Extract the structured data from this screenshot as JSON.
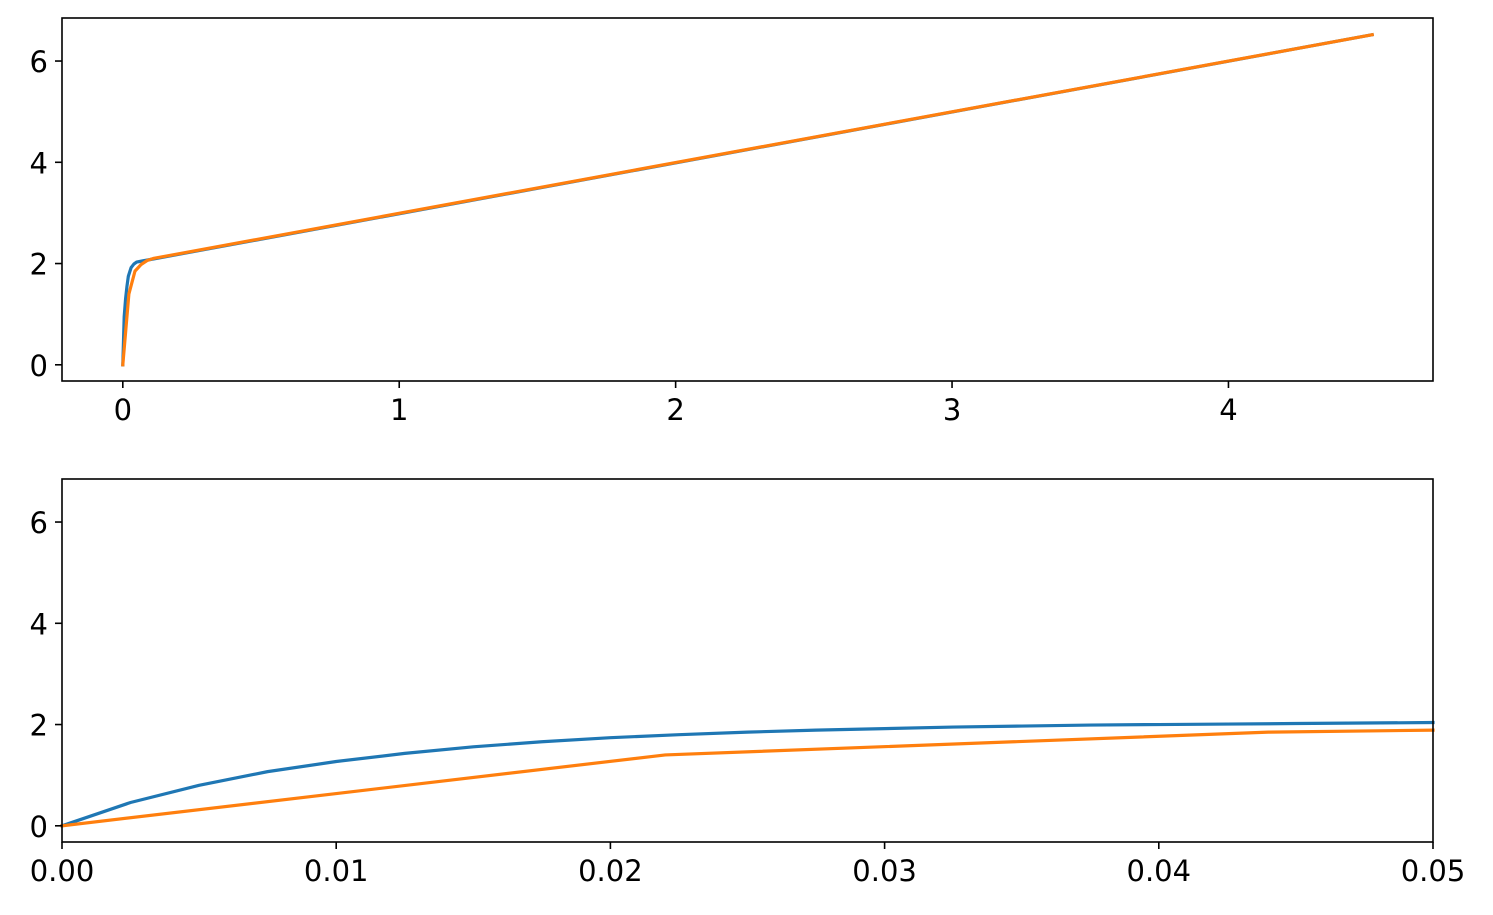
{
  "chart_data": [
    {
      "type": "line",
      "title": "",
      "xlabel": "",
      "ylabel": "",
      "xlim": [
        -0.22,
        4.74
      ],
      "ylim": [
        -0.32,
        6.85
      ],
      "xticks": [
        0,
        1,
        2,
        3,
        4
      ],
      "xtick_labels": [
        "0",
        "1",
        "2",
        "3",
        "4"
      ],
      "yticks": [
        0,
        2,
        4,
        6
      ],
      "ytick_labels": [
        "0",
        "2",
        "4",
        "6"
      ],
      "grid": false,
      "series": [
        {
          "color": "#1f77b4",
          "x": [
            0,
            0.005,
            0.01,
            0.015,
            0.02,
            0.03,
            0.04,
            0.05,
            0.07,
            0.1,
            4.52
          ],
          "y": [
            0,
            0.95,
            1.3,
            1.55,
            1.75,
            1.92,
            1.99,
            2.03,
            2.05,
            2.08,
            6.52
          ]
        },
        {
          "color": "#ff7f0e",
          "x": [
            0,
            0.022,
            0.044,
            0.066,
            0.088,
            0.11,
            4.52
          ],
          "y": [
            0,
            1.4,
            1.85,
            1.98,
            2.06,
            2.1,
            6.52
          ]
        }
      ]
    },
    {
      "type": "line",
      "title": "",
      "xlabel": "",
      "ylabel": "",
      "xlim": [
        0,
        0.05
      ],
      "ylim": [
        -0.32,
        6.85
      ],
      "xticks": [
        0,
        0.01,
        0.02,
        0.03,
        0.04,
        0.05
      ],
      "xtick_labels": [
        "0.00",
        "0.01",
        "0.02",
        "0.03",
        "0.04",
        "0.05"
      ],
      "yticks": [
        0,
        2,
        4,
        6
      ],
      "ytick_labels": [
        "0",
        "2",
        "4",
        "6"
      ],
      "grid": false,
      "series": [
        {
          "color": "#1f77b4",
          "x": [
            0,
            0.0025,
            0.005,
            0.0075,
            0.01,
            0.0125,
            0.015,
            0.0175,
            0.02,
            0.0225,
            0.025,
            0.0275,
            0.03,
            0.0325,
            0.035,
            0.0375,
            0.04,
            0.0425,
            0.045,
            0.0475,
            0.05
          ],
          "y": [
            0,
            0.46,
            0.8,
            1.07,
            1.27,
            1.43,
            1.56,
            1.66,
            1.74,
            1.8,
            1.85,
            1.89,
            1.92,
            1.95,
            1.97,
            1.99,
            2.0,
            2.01,
            2.02,
            2.03,
            2.04
          ]
        },
        {
          "color": "#ff7f0e",
          "x": [
            0,
            0.022,
            0.044,
            0.05
          ],
          "y": [
            0,
            1.4,
            1.85,
            1.89
          ]
        }
      ]
    }
  ]
}
